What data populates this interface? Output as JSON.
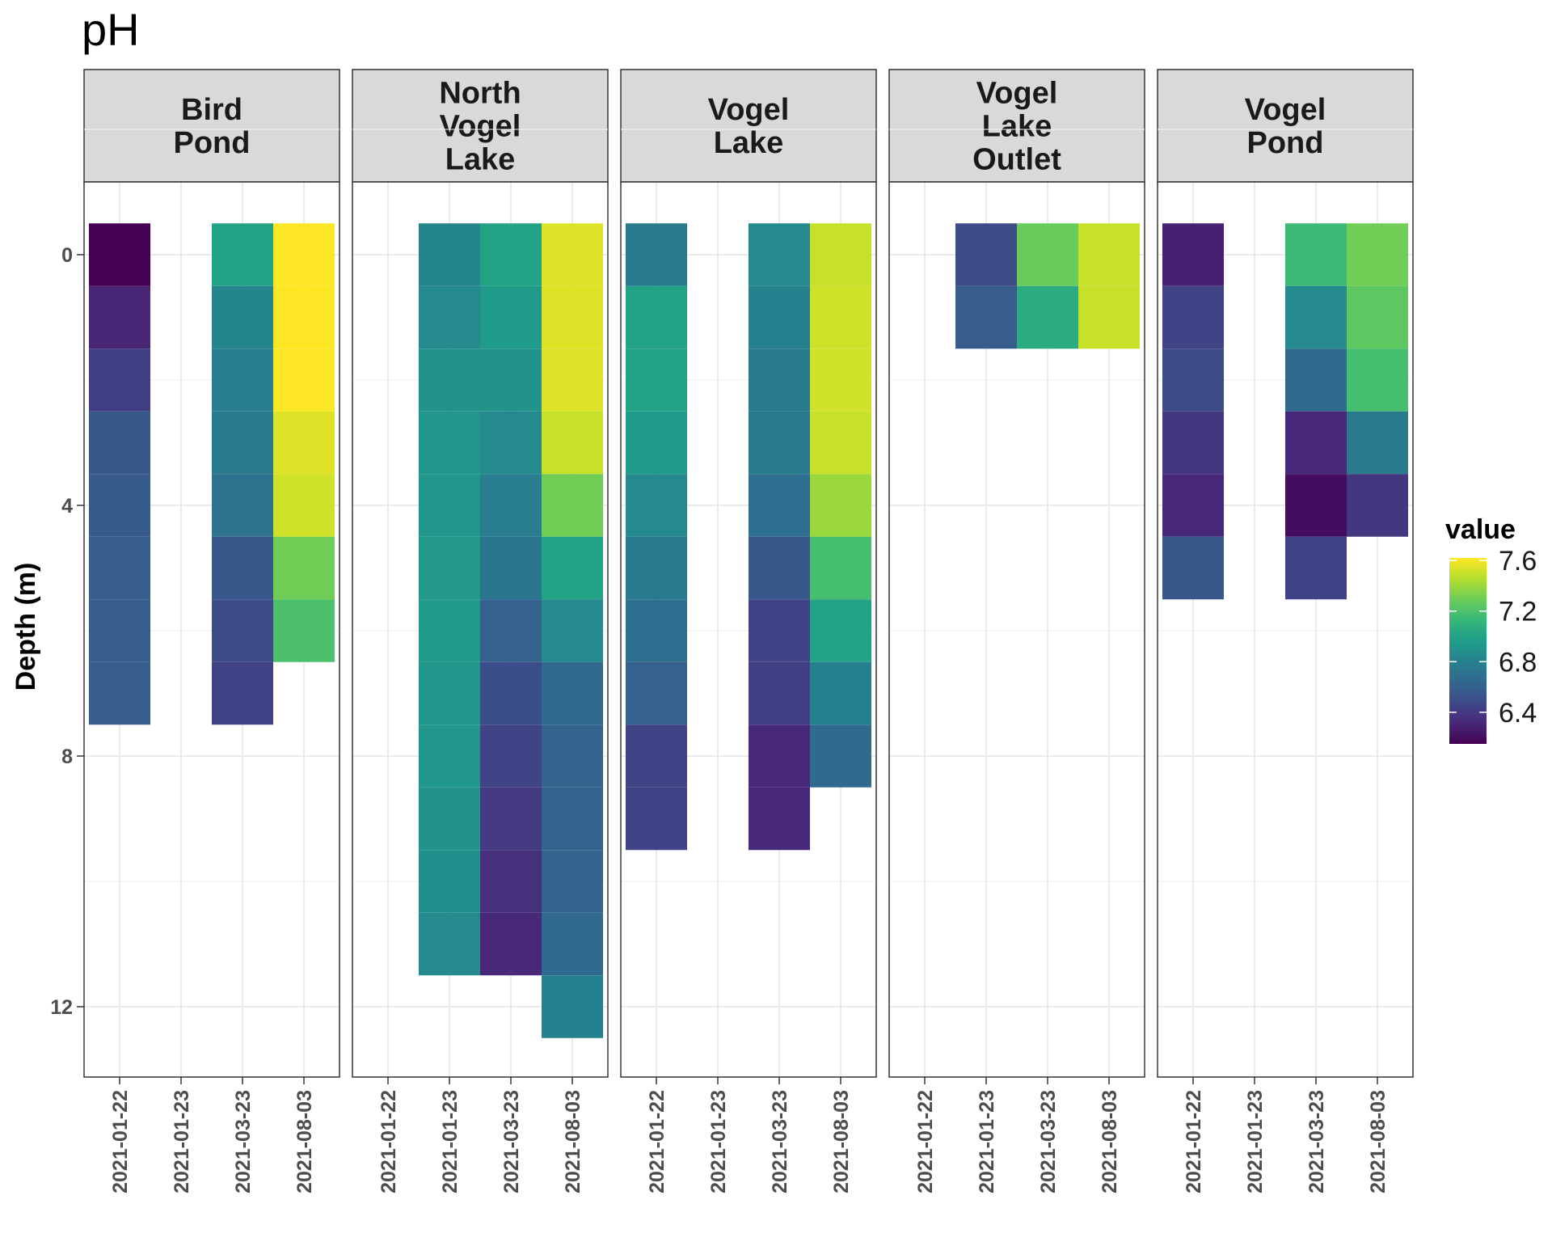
{
  "chart_data": {
    "type": "heatmap",
    "title": "pH",
    "ylabel": "Depth (m)",
    "xlabel": "",
    "y_reversed": true,
    "ylim": [
      -0.5,
      13.1
    ],
    "y_ticks": [
      0,
      4,
      8,
      12
    ],
    "y_tick_labels": [
      "0",
      "4",
      "8",
      "12"
    ],
    "categories": [
      "2021-01-22",
      "2021-01-23",
      "2021-03-23",
      "2021-08-03"
    ],
    "grid": true,
    "colorscale": "viridis",
    "legend": {
      "title": "value",
      "position": "right",
      "range": [
        6.15,
        7.62
      ],
      "ticks": [
        6.4,
        6.8,
        7.2,
        7.6
      ],
      "tick_labels": [
        "6.4",
        "6.8",
        "7.2",
        "7.6"
      ]
    },
    "panels": [
      {
        "name": "Bird Pond",
        "strip_lines": [
          "Bird",
          "Pond"
        ],
        "series": [
          {
            "x": "2021-01-22",
            "depths": [
              0,
              1,
              2,
              3,
              4,
              5,
              6,
              7
            ],
            "values": [
              6.15,
              6.3,
              6.42,
              6.55,
              6.57,
              6.58,
              6.58,
              6.58
            ]
          },
          {
            "x": "2021-03-23",
            "depths": [
              0,
              1,
              2,
              3,
              4,
              5,
              6,
              7
            ],
            "values": [
              7.0,
              6.82,
              6.78,
              6.75,
              6.7,
              6.55,
              6.48,
              6.45
            ]
          },
          {
            "x": "2021-08-03",
            "depths": [
              0,
              1,
              2,
              3,
              4,
              5,
              6
            ],
            "values": [
              7.62,
              7.62,
              7.62,
              7.55,
              7.52,
              7.3,
              7.2
            ]
          }
        ]
      },
      {
        "name": "North Vogel Lake",
        "strip_lines": [
          "North",
          "Vogel",
          "Lake"
        ],
        "series": [
          {
            "x": "2021-01-23",
            "depths": [
              0,
              1,
              2,
              3,
              4,
              5,
              6,
              7,
              8,
              9,
              10,
              11
            ],
            "values": [
              6.82,
              6.85,
              6.9,
              6.92,
              6.92,
              6.93,
              6.95,
              6.92,
              6.92,
              6.9,
              6.88,
              6.85
            ]
          },
          {
            "x": "2021-03-23",
            "depths": [
              0,
              1,
              2,
              3,
              4,
              5,
              6,
              7,
              8,
              9,
              10,
              11
            ],
            "values": [
              7.0,
              6.95,
              6.9,
              6.85,
              6.78,
              6.72,
              6.6,
              6.5,
              6.45,
              6.4,
              6.35,
              6.32
            ]
          },
          {
            "x": "2021-08-03",
            "depths": [
              0,
              1,
              2,
              3,
              4,
              5,
              6,
              7,
              8,
              9,
              10,
              11,
              12
            ],
            "values": [
              7.55,
              7.55,
              7.55,
              7.5,
              7.3,
              7.0,
              6.85,
              6.65,
              6.62,
              6.62,
              6.62,
              6.65,
              6.8
            ]
          }
        ]
      },
      {
        "name": "Vogel Lake",
        "strip_lines": [
          "Vogel",
          "Lake"
        ],
        "series": [
          {
            "x": "2021-01-22",
            "depths": [
              0,
              1,
              2,
              3,
              4,
              5,
              6,
              7,
              8,
              9
            ],
            "values": [
              6.75,
              7.0,
              7.0,
              6.95,
              6.85,
              6.75,
              6.68,
              6.6,
              6.45,
              6.45
            ]
          },
          {
            "x": "2021-03-23",
            "depths": [
              0,
              1,
              2,
              3,
              4,
              5,
              6,
              7,
              8,
              9
            ],
            "values": [
              6.85,
              6.8,
              6.75,
              6.75,
              6.68,
              6.55,
              6.45,
              6.42,
              6.32,
              6.32
            ]
          },
          {
            "x": "2021-08-03",
            "depths": [
              0,
              1,
              2,
              3,
              4,
              5,
              6,
              7,
              8
            ],
            "values": [
              7.5,
              7.52,
              7.52,
              7.5,
              7.4,
              7.18,
              7.0,
              6.8,
              6.65
            ]
          }
        ]
      },
      {
        "name": "Vogel Lake Outlet",
        "strip_lines": [
          "Vogel",
          "Lake",
          "Outlet"
        ],
        "series": [
          {
            "x": "2021-01-23",
            "depths": [
              0,
              1
            ],
            "values": [
              6.48,
              6.58
            ]
          },
          {
            "x": "2021-03-23",
            "depths": [
              0,
              1
            ],
            "values": [
              7.28,
              7.05
            ]
          },
          {
            "x": "2021-08-03",
            "depths": [
              0,
              1
            ],
            "values": [
              7.5,
              7.5
            ]
          }
        ]
      },
      {
        "name": "Vogel Pond",
        "strip_lines": [
          "Vogel",
          "Pond"
        ],
        "series": [
          {
            "x": "2021-01-22",
            "depths": [
              0,
              1,
              2,
              3,
              4,
              5
            ],
            "values": [
              6.28,
              6.45,
              6.48,
              6.38,
              6.32,
              6.55
            ]
          },
          {
            "x": "2021-03-23",
            "depths": [
              0,
              1,
              2,
              3,
              4,
              5
            ],
            "values": [
              7.15,
              6.85,
              6.65,
              6.32,
              6.2,
              6.45
            ]
          },
          {
            "x": "2021-08-03",
            "depths": [
              0,
              1,
              2,
              3,
              4
            ],
            "values": [
              7.3,
              7.25,
              7.18,
              6.75,
              6.38
            ]
          }
        ]
      }
    ]
  }
}
